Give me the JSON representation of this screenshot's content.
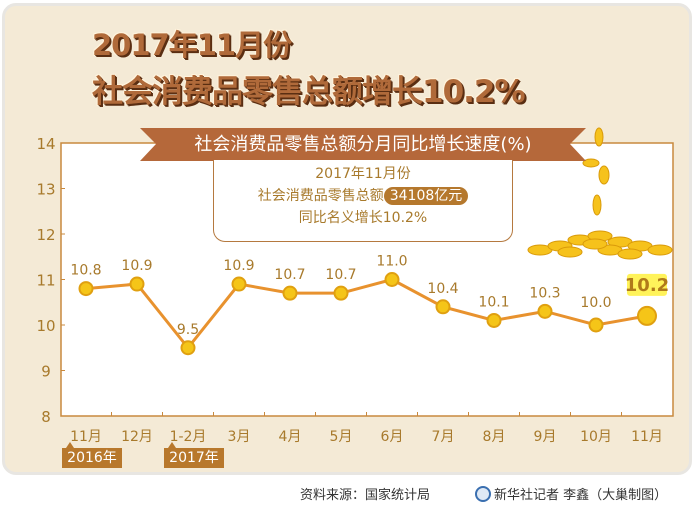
{
  "title": {
    "line1": "2017年11月份",
    "line2": "社会消费品零售总额增长10.2%"
  },
  "banner": "社会消费品零售总额分月同比增长速度(%)",
  "info": {
    "line1": "2017年11月份",
    "line2_prefix": "社会消费品零售总额",
    "amount": "34108亿元",
    "line3": "同比名义增长10.2%"
  },
  "year_tags": [
    "2016年",
    "2017年"
  ],
  "footer": {
    "source": "资料来源：国家统计局",
    "credit": "新华社记者 李鑫（大巢制图）"
  },
  "colors": {
    "line": "#e8922e",
    "marker": "#f5c518",
    "axis": "#c8893e",
    "label": "#a87a2c",
    "banner": "#b5683a",
    "highlight": "#fff35a"
  },
  "decoration": "gold-coins",
  "chart_data": {
    "type": "line",
    "title": "社会消费品零售总额分月同比增长速度(%)",
    "categories": [
      "11月",
      "12月",
      "1-2月",
      "3月",
      "4月",
      "5月",
      "6月",
      "7月",
      "8月",
      "9月",
      "10月",
      "11月"
    ],
    "values": [
      10.8,
      10.9,
      9.5,
      10.9,
      10.7,
      10.7,
      11.0,
      10.4,
      10.1,
      10.3,
      10.0,
      10.2
    ],
    "data_labels": [
      "10.8",
      "10.9",
      "9.5",
      "10.9",
      "10.7",
      "10.7",
      "11.0",
      "10.4",
      "10.1",
      "10.3",
      "10.0",
      "10.2"
    ],
    "yticks": [
      "8",
      "9",
      "10",
      "11",
      "12",
      "13",
      "14"
    ],
    "ylim": [
      8,
      14
    ],
    "grid": false,
    "highlight_last": true
  }
}
